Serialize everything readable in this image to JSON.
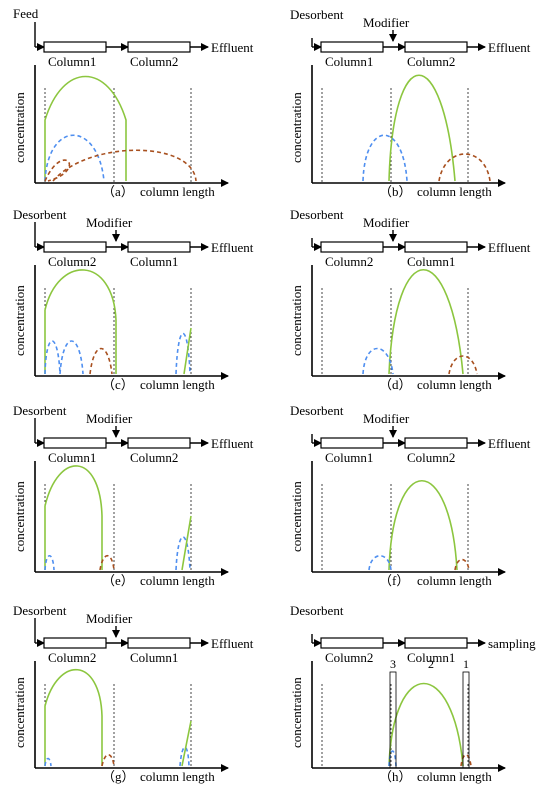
{
  "colors": {
    "axis": "#000000",
    "green": "#8cc63f",
    "blue": "#4f8ff0",
    "brown": "#a8501f",
    "divider": "#444444"
  },
  "ylabel": "concentration",
  "xlabel": "column length",
  "panels": [
    {
      "id": "a",
      "label": "（a）",
      "top_label": "Feed",
      "modifier": "",
      "columns": [
        "Column1",
        "Column2"
      ],
      "outlet": "Effluent",
      "markers": []
    },
    {
      "id": "b",
      "label": "（b）",
      "top_label": "Desorbent",
      "modifier": "Modifier",
      "columns": [
        "Column1",
        "Column2"
      ],
      "outlet": "Effluent",
      "markers": []
    },
    {
      "id": "c",
      "label": "（c）",
      "top_label": "Desorbent",
      "modifier": "Modifier",
      "columns": [
        "Column2",
        "Column1"
      ],
      "outlet": "Effluent",
      "markers": []
    },
    {
      "id": "d",
      "label": "（d）",
      "top_label": "Desorbent",
      "modifier": "Modifier",
      "columns": [
        "Column2",
        "Column1"
      ],
      "outlet": "Effluent",
      "markers": []
    },
    {
      "id": "e",
      "label": "（e）",
      "top_label": "Desorbent",
      "modifier": "Modifier",
      "columns": [
        "Column1",
        "Column2"
      ],
      "outlet": "Effluent",
      "markers": []
    },
    {
      "id": "f",
      "label": "（f）",
      "top_label": "Desorbent",
      "modifier": "Modifier",
      "columns": [
        "Column1",
        "Column2"
      ],
      "outlet": "Effluent",
      "markers": []
    },
    {
      "id": "g",
      "label": "（g）",
      "top_label": "Desorbent",
      "modifier": "Modifier",
      "columns": [
        "Column2",
        "Column1"
      ],
      "outlet": "Effluent",
      "markers": []
    },
    {
      "id": "h",
      "label": "（h）",
      "top_label": "Desorbent",
      "modifier": "",
      "columns": [
        "Column2",
        "Column1"
      ],
      "outlet": "sampling",
      "markers": [
        "3",
        "2",
        "1"
      ]
    }
  ]
}
